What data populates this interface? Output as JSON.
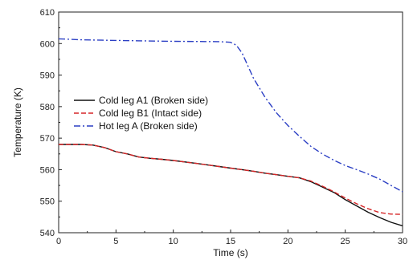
{
  "chart_data": {
    "type": "line",
    "xlabel": "Time (s)",
    "ylabel": "Temperature (K)",
    "xlim": [
      0,
      30
    ],
    "ylim": [
      540,
      610
    ],
    "xticks": [
      0,
      5,
      10,
      15,
      20,
      25,
      30
    ],
    "yticks": [
      540,
      550,
      560,
      570,
      580,
      590,
      600,
      610
    ],
    "grid": false,
    "legend_position": "left-middle",
    "series": [
      {
        "name": "Cold leg A1 (Broken side)",
        "color": "#111111",
        "dash": "solid",
        "x": [
          0,
          2,
          3,
          4,
          5,
          6,
          7,
          8,
          9,
          10,
          12,
          14,
          15,
          16,
          17,
          18,
          19,
          20,
          21,
          22,
          23,
          24,
          25,
          26,
          27,
          28,
          29,
          30
        ],
        "y": [
          568,
          568,
          567.8,
          567,
          565.7,
          565,
          564,
          563.6,
          563.3,
          562.9,
          562,
          561,
          560.5,
          560,
          559.5,
          558.9,
          558.4,
          557.9,
          557.4,
          556.2,
          554.5,
          552.8,
          550.5,
          548.5,
          546.5,
          544.8,
          543.3,
          542.2
        ]
      },
      {
        "name": "Cold leg B1 (Intact side)",
        "color": "#d62728",
        "dash": "dashed",
        "x": [
          0,
          2,
          3,
          4,
          5,
          6,
          7,
          8,
          9,
          10,
          12,
          14,
          15,
          16,
          17,
          18,
          19,
          20,
          21,
          22,
          23,
          24,
          25,
          26,
          27,
          28,
          29,
          30
        ],
        "y": [
          568,
          568,
          567.8,
          567,
          565.7,
          565,
          564,
          563.6,
          563.3,
          562.9,
          562,
          561,
          560.5,
          560,
          559.5,
          558.9,
          558.4,
          557.9,
          557.4,
          556.4,
          554.8,
          553,
          551,
          549.2,
          547.6,
          546.4,
          545.9,
          545.8
        ]
      },
      {
        "name": "Hot leg A (Broken side)",
        "color": "#2b3fc4",
        "dash": "dashdot",
        "x": [
          0,
          2,
          5,
          10,
          14,
          15,
          15.5,
          16,
          16.5,
          17,
          18,
          19,
          20,
          21,
          22,
          23,
          24,
          25,
          26,
          27,
          28,
          29,
          30
        ],
        "y": [
          601.5,
          601.2,
          601,
          600.7,
          600.6,
          600.4,
          599.5,
          597,
          593,
          589,
          583,
          578,
          574,
          570.6,
          567.4,
          565,
          563,
          561.3,
          560,
          558.6,
          557,
          555,
          553
        ]
      }
    ]
  }
}
